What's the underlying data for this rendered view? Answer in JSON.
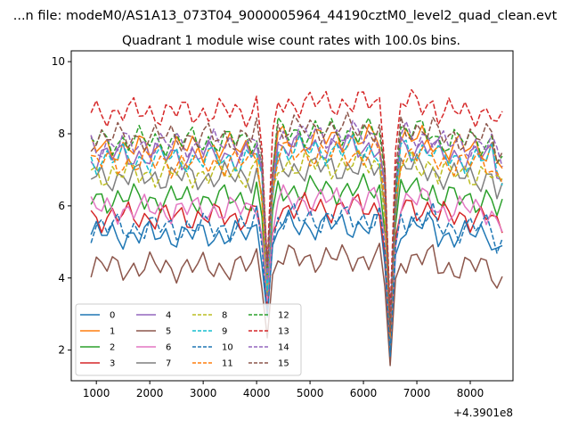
{
  "chart_data": {
    "type": "line",
    "suptitle": "...n file: modeM0/AS1A13_073T04_9000005964_44190cztM0_level2_quad_clean.evt",
    "title": "Quadrant 1 module wise count rates with 100.0s bins.",
    "xlabel": "",
    "ylabel": "",
    "x_offset_label": "+4.3901e8",
    "xlim": [
      530,
      8800
    ],
    "ylim": [
      1.15,
      10.3
    ],
    "x_ticks": [
      1000,
      2000,
      3000,
      4000,
      5000,
      6000,
      7000,
      8000
    ],
    "y_ticks": [
      2,
      4,
      6,
      8,
      10
    ],
    "grid": false,
    "legend_position": "lower-left",
    "x_start": 900,
    "x_step": 100,
    "series": [
      {
        "name": "0",
        "color": "#1f77b4",
        "dash": false,
        "base": 5.2
      },
      {
        "name": "1",
        "color": "#ff7f0e",
        "dash": false,
        "base": 7.6
      },
      {
        "name": "2",
        "color": "#2ca02c",
        "dash": false,
        "base": 6.2
      },
      {
        "name": "3",
        "color": "#d62728",
        "dash": false,
        "base": 5.7
      },
      {
        "name": "4",
        "color": "#9467bd",
        "dash": false,
        "base": 7.4
      },
      {
        "name": "5",
        "color": "#8c564b",
        "dash": false,
        "base": 4.3
      },
      {
        "name": "6",
        "color": "#e377c2",
        "dash": false,
        "base": 5.9
      },
      {
        "name": "7",
        "color": "#7f7f7f",
        "dash": false,
        "base": 6.8
      },
      {
        "name": "8",
        "color": "#bcbd22",
        "dash": true,
        "base": 6.9
      },
      {
        "name": "9",
        "color": "#17becf",
        "dash": true,
        "base": 7.3
      },
      {
        "name": "10",
        "color": "#1f77b4",
        "dash": true,
        "base": 5.4
      },
      {
        "name": "11",
        "color": "#ff7f0e",
        "dash": true,
        "base": 7.2
      },
      {
        "name": "12",
        "color": "#2ca02c",
        "dash": true,
        "base": 7.8
      },
      {
        "name": "13",
        "color": "#d62728",
        "dash": true,
        "base": 8.6
      },
      {
        "name": "14",
        "color": "#9467bd",
        "dash": true,
        "base": 7.7
      },
      {
        "name": "15",
        "color": "#8c564b",
        "dash": true,
        "base": 7.9
      }
    ]
  }
}
